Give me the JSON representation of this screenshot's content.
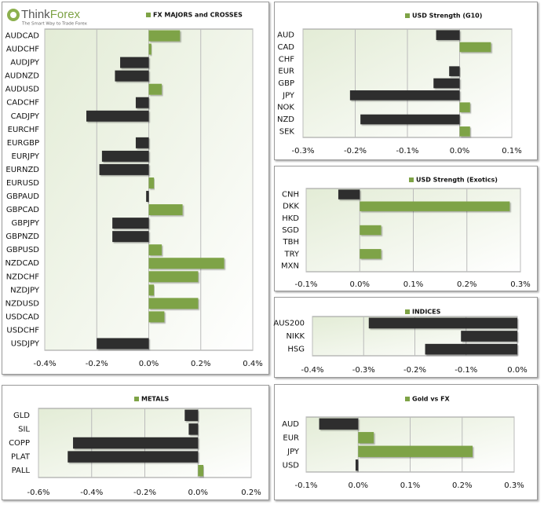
{
  "header": {
    "brand": [
      "Think",
      "Forex"
    ],
    "tagline": "The Smart Way to Trade Forex"
  },
  "chart_data": [
    {
      "type": "bar",
      "orientation": "horizontal",
      "positive_color": "#7ea346",
      "negative_color": "#2e2e2e",
      "grid": true,
      "series": [
        {
          "name": "FX MAJORS and CROSSES",
          "color": "#7ea346",
          "values": [
            0.12,
            0.01,
            -0.11,
            -0.13,
            0.05,
            -0.05,
            -0.24,
            0,
            -0.05,
            -0.18,
            -0.19,
            0.02,
            -0.01,
            0.13,
            -0.14,
            -0.14,
            0.05,
            0.29,
            0.19,
            0.02,
            0.19,
            0.06,
            0,
            -0.2
          ]
        }
      ],
      "categories": [
        "AUDCAD",
        "AUDCHF",
        "AUDJPY",
        "AUDNZD",
        "AUDUSD",
        "CADCHF",
        "CADJPY",
        "EURCHF",
        "EURGBP",
        "EURJPY",
        "EURNZD",
        "EURUSD",
        "GBPAUD",
        "GBPCAD",
        "GBPJPY",
        "GBPNZD",
        "GBPUSD",
        "NZDCAD",
        "NZDCHF",
        "NZDJPY",
        "NZDUSD",
        "USDCAD",
        "USDCHF",
        "USDJPY"
      ],
      "xlim": [
        -0.4,
        0.4
      ],
      "xticks": [
        {
          "value": -0.4,
          "label": "-0.4%"
        },
        {
          "value": -0.2,
          "label": "-0.2%"
        },
        {
          "value": 0,
          "label": "0.0%"
        },
        {
          "value": 0.2,
          "label": "0.2%"
        },
        {
          "value": 0.4,
          "label": "0.4%"
        }
      ]
    },
    {
      "type": "bar",
      "orientation": "horizontal",
      "positive_color": "#7ea346",
      "negative_color": "#2e2e2e",
      "grid": true,
      "series": [
        {
          "name": "USD Strength (G10)",
          "color": "#7ea346",
          "values": [
            -0.045,
            0.06,
            0,
            -0.02,
            -0.05,
            -0.21,
            0.02,
            -0.19,
            0.02
          ]
        }
      ],
      "categories": [
        "AUD",
        "CAD",
        "CHF",
        "EUR",
        "GBP",
        "JPY",
        "NOK",
        "NZD",
        "SEK"
      ],
      "xlim": [
        -0.3,
        0.1
      ],
      "xticks": [
        {
          "value": -0.3,
          "label": "-0.3%"
        },
        {
          "value": -0.2,
          "label": "-0.2%"
        },
        {
          "value": -0.1,
          "label": "-0.1%"
        },
        {
          "value": 0,
          "label": "0.0%"
        },
        {
          "value": 0.1,
          "label": "0.1%"
        }
      ]
    },
    {
      "type": "bar",
      "orientation": "horizontal",
      "positive_color": "#7ea346",
      "negative_color": "#2e2e2e",
      "grid": true,
      "series": [
        {
          "name": "USD Strength (Exotics)",
          "color": "#7ea346",
          "values": [
            -0.04,
            0.28,
            0,
            0.04,
            0,
            0.04,
            0
          ]
        }
      ],
      "categories": [
        "CNH",
        "DKK",
        "HKD",
        "SGD",
        "TBH",
        "TRY",
        "MXN"
      ],
      "xlim": [
        -0.1,
        0.3
      ],
      "xticks": [
        {
          "value": -0.1,
          "label": "-0.1%"
        },
        {
          "value": 0,
          "label": "0.0%"
        },
        {
          "value": 0.1,
          "label": "0.1%"
        },
        {
          "value": 0.2,
          "label": "0.2%"
        },
        {
          "value": 0.3,
          "label": "0.3%"
        }
      ]
    },
    {
      "type": "bar",
      "orientation": "horizontal",
      "positive_color": "#7ea346",
      "negative_color": "#2e2e2e",
      "grid": true,
      "series": [
        {
          "name": "INDICES",
          "color": "#7ea346",
          "values": [
            -0.29,
            -0.11,
            -0.18
          ]
        }
      ],
      "categories": [
        "AUS200",
        "NIKK",
        "HSG"
      ],
      "xlim": [
        -0.4,
        0
      ],
      "xticks": [
        {
          "value": -0.4,
          "label": "-0.4%"
        },
        {
          "value": -0.3,
          "label": "-0.3%"
        },
        {
          "value": -0.2,
          "label": "-0.2%"
        },
        {
          "value": -0.1,
          "label": "-0.1%"
        },
        {
          "value": 0,
          "label": "0.0%"
        }
      ]
    },
    {
      "type": "bar",
      "orientation": "horizontal",
      "positive_color": "#7ea346",
      "negative_color": "#2e2e2e",
      "grid": true,
      "series": [
        {
          "name": "METALS",
          "color": "#7ea346",
          "values": [
            -0.05,
            -0.035,
            -0.47,
            -0.49,
            0.02
          ]
        }
      ],
      "categories": [
        "GLD",
        "SIL",
        "COPP",
        "PLAT",
        "PALL"
      ],
      "xlim": [
        -0.6,
        0.2
      ],
      "xticks": [
        {
          "value": -0.6,
          "label": "-0.6%"
        },
        {
          "value": -0.4,
          "label": "-0.4%"
        },
        {
          "value": -0.2,
          "label": "-0.2%"
        },
        {
          "value": 0,
          "label": "0.0%"
        },
        {
          "value": 0.2,
          "label": "0.2%"
        }
      ]
    },
    {
      "type": "bar",
      "orientation": "horizontal",
      "positive_color": "#7ea346",
      "negative_color": "#2e2e2e",
      "grid": true,
      "series": [
        {
          "name": "Gold vs FX",
          "color": "#7ea346",
          "values": [
            -0.075,
            0.03,
            0.22,
            -0.005
          ]
        }
      ],
      "categories": [
        "AUD",
        "EUR",
        "JPY",
        "USD"
      ],
      "xlim": [
        -0.1,
        0.3
      ],
      "xticks": [
        {
          "value": -0.1,
          "label": "-0.1%"
        },
        {
          "value": 0,
          "label": "0.0%"
        },
        {
          "value": 0.1,
          "label": "0.1%"
        },
        {
          "value": 0.2,
          "label": "0.2%"
        },
        {
          "value": 0.3,
          "label": "0.3%"
        }
      ]
    }
  ]
}
